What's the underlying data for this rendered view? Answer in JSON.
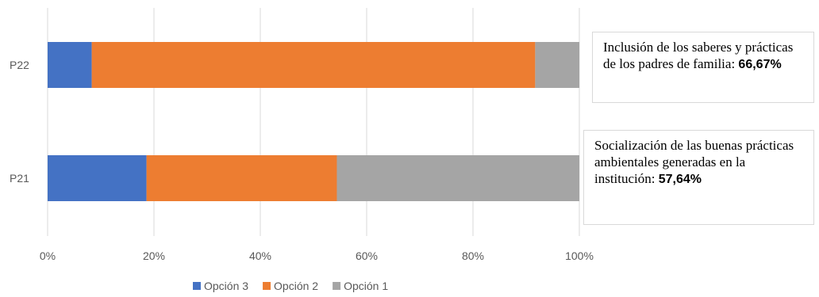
{
  "chart_data": {
    "type": "bar",
    "orientation": "horizontal",
    "stacked": "100%",
    "categories": [
      "P22",
      "P21"
    ],
    "series": [
      {
        "name": "Opción 3",
        "color": "#4472c4",
        "values": [
          8.3,
          18.6
        ]
      },
      {
        "name": "Opción 2",
        "color": "#ed7d31",
        "values": [
          83.4,
          35.8
        ]
      },
      {
        "name": "Opción 1",
        "color": "#a5a5a5",
        "values": [
          8.3,
          45.6
        ]
      }
    ],
    "x_ticks": [
      "0%",
      "20%",
      "40%",
      "60%",
      "80%",
      "100%"
    ],
    "xlim": [
      0,
      100
    ],
    "grid": true,
    "legend": "bottom"
  },
  "annotations": [
    {
      "text": "Inclusión de los saberes y prácticas de los padres de familia: ",
      "value": "66,67%"
    },
    {
      "text": "Socialización de las buenas prácticas ambientales generadas en la institución: ",
      "value": "57,64%"
    }
  ]
}
